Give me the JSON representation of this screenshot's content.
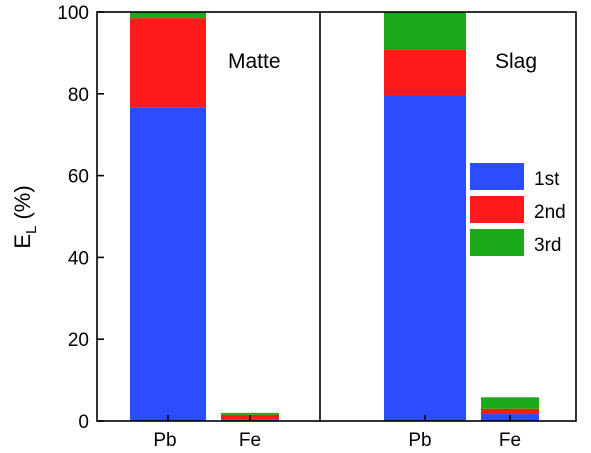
{
  "chart_data": {
    "type": "bar",
    "stacked": true,
    "ylabel_main": "E",
    "ylabel_sub": "L",
    "ylabel_unit": " (%)",
    "ylim": [
      0,
      100
    ],
    "yticks": [
      "0",
      "20",
      "40",
      "60",
      "80",
      "100"
    ],
    "ytick_values": [
      0,
      20,
      40,
      60,
      80,
      100
    ],
    "legend": {
      "placement": "right-middle of right panel",
      "entries": [
        {
          "label": "1st",
          "color": "#2b4cff"
        },
        {
          "label": "2nd",
          "color": "#ff1a1a"
        },
        {
          "label": "3rd",
          "color": "#1aaa1a"
        }
      ]
    },
    "panels": [
      {
        "title": "Matte",
        "categories": [
          "Pb",
          "Fe"
        ],
        "series": [
          {
            "name": "1st",
            "values": [
              76.7,
              0.4
            ]
          },
          {
            "name": "2nd",
            "values": [
              21.8,
              1.1
            ]
          },
          {
            "name": "3rd",
            "values": [
              1.5,
              0.5
            ]
          }
        ]
      },
      {
        "title": "Slag",
        "categories": [
          "Pb",
          "Fe"
        ],
        "series": [
          {
            "name": "1st",
            "values": [
              79.7,
              1.7
            ]
          },
          {
            "name": "2nd",
            "values": [
              11.0,
              1.3
            ]
          },
          {
            "name": "3rd",
            "values": [
              9.3,
              2.8
            ]
          }
        ]
      }
    ]
  }
}
